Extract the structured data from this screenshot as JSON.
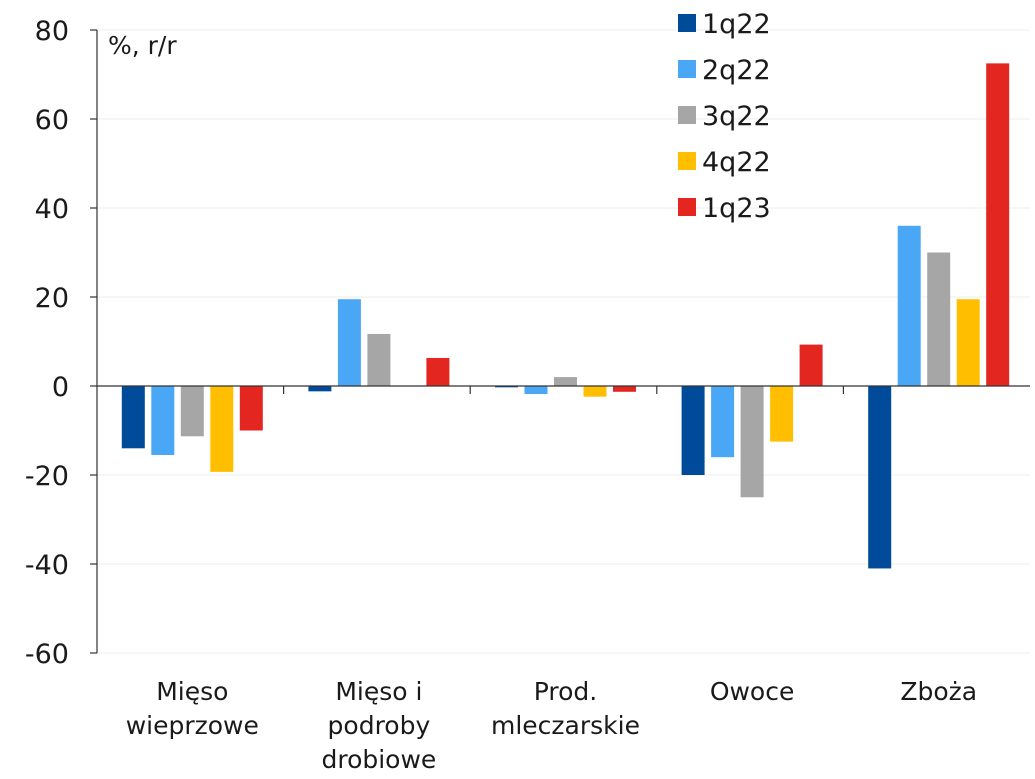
{
  "chart_data": {
    "type": "bar",
    "unit_label": "%, r/r",
    "categories": [
      [
        "Mięso",
        "wieprzowe"
      ],
      [
        "Mięso i",
        "podroby",
        "drobiowe"
      ],
      [
        "Prod.",
        "mleczarskie"
      ],
      [
        "Owoce"
      ],
      [
        "Zboża"
      ]
    ],
    "series": [
      {
        "name": "1q22",
        "color": "#004b99",
        "values": [
          -14,
          -1.2,
          -0.3,
          -20,
          -41
        ]
      },
      {
        "name": "2q22",
        "color": "#4aa7f5",
        "values": [
          -15.5,
          19.5,
          -1.8,
          -16,
          36
        ]
      },
      {
        "name": "3q22",
        "color": "#a6a6a6",
        "values": [
          -11.3,
          11.7,
          2,
          -25,
          30
        ]
      },
      {
        "name": "4q22",
        "color": "#ffbf00",
        "values": [
          -19.3,
          0,
          -2.4,
          -12.5,
          19.5
        ]
      },
      {
        "name": "1q23",
        "color": "#e3261f",
        "values": [
          -10,
          6.3,
          -1.3,
          9.3,
          72.5
        ]
      }
    ],
    "ylim": [
      -60,
      80
    ],
    "yticks": [
      -60,
      -40,
      -20,
      0,
      20,
      40,
      60,
      80
    ],
    "grid": true,
    "legend_position": "top-right"
  }
}
